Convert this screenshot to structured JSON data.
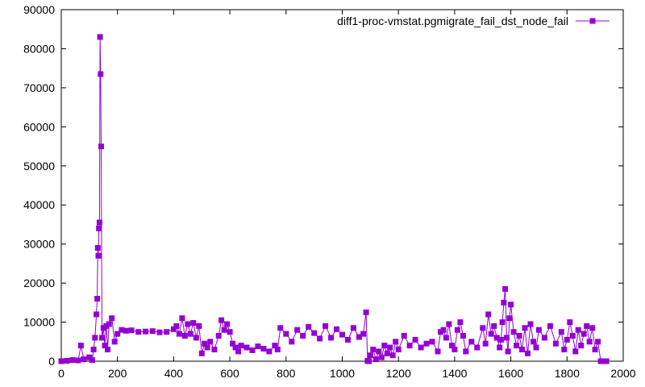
{
  "chart_data": {
    "type": "line",
    "title": "",
    "xlabel": "",
    "ylabel": "",
    "xlim": [
      0,
      2000
    ],
    "ylim": [
      0,
      90000
    ],
    "x_ticks": [
      0,
      200,
      400,
      600,
      800,
      1000,
      1200,
      1400,
      1600,
      1800,
      2000
    ],
    "y_ticks": [
      0,
      10000,
      20000,
      30000,
      40000,
      50000,
      60000,
      70000,
      80000,
      90000
    ],
    "grid": false,
    "legend_position": "top-right",
    "series": [
      {
        "name": "diff1-proc-vmstat.pgmigrate_fail_dst_node_fail",
        "color": "#9400d3",
        "marker": "square",
        "x": [
          0,
          20,
          40,
          60,
          70,
          80,
          100,
          110,
          115,
          120,
          125,
          128,
          130,
          132,
          134,
          136,
          138,
          140,
          142,
          145,
          150,
          155,
          160,
          165,
          170,
          180,
          190,
          200,
          215,
          230,
          250,
          275,
          300,
          325,
          350,
          375,
          400,
          410,
          420,
          430,
          440,
          450,
          460,
          470,
          480,
          490,
          500,
          510,
          520,
          530,
          545,
          560,
          570,
          580,
          590,
          600,
          610,
          620,
          630,
          640,
          660,
          680,
          700,
          720,
          740,
          760,
          770,
          780,
          800,
          820,
          840,
          860,
          880,
          900,
          920,
          940,
          960,
          980,
          1000,
          1020,
          1040,
          1060,
          1075,
          1085,
          1090,
          1095,
          1100,
          1110,
          1120,
          1130,
          1140,
          1150,
          1160,
          1170,
          1180,
          1190,
          1200,
          1220,
          1240,
          1260,
          1280,
          1300,
          1320,
          1340,
          1350,
          1360,
          1370,
          1380,
          1390,
          1400,
          1410,
          1420,
          1430,
          1440,
          1460,
          1480,
          1500,
          1510,
          1520,
          1530,
          1540,
          1550,
          1560,
          1565,
          1570,
          1575,
          1580,
          1585,
          1590,
          1595,
          1600,
          1610,
          1620,
          1630,
          1640,
          1650,
          1660,
          1670,
          1680,
          1690,
          1700,
          1720,
          1740,
          1760,
          1780,
          1790,
          1800,
          1810,
          1820,
          1830,
          1840,
          1850,
          1860,
          1870,
          1880,
          1890,
          1900,
          1910,
          1920,
          1940
        ],
        "y": [
          0,
          100,
          300,
          200,
          4000,
          500,
          1000,
          300,
          3000,
          6000,
          12000,
          16000,
          29000,
          27000,
          34000,
          35500,
          83000,
          73500,
          55000,
          6000,
          8500,
          4000,
          9000,
          3000,
          9500,
          11000,
          5000,
          7000,
          8000,
          7800,
          7900,
          7500,
          7600,
          7700,
          7400,
          7500,
          8200,
          9000,
          7000,
          11000,
          6500,
          9500,
          7000,
          9800,
          6000,
          9000,
          2000,
          4500,
          3500,
          5000,
          3000,
          6500,
          10500,
          8000,
          9500,
          7500,
          4500,
          3500,
          2500,
          4000,
          3500,
          2800,
          3800,
          3200,
          2500,
          4000,
          3000,
          8500,
          7000,
          5000,
          8000,
          6500,
          8800,
          7200,
          5800,
          9000,
          6000,
          8200,
          6800,
          5500,
          8500,
          6200,
          7000,
          12500,
          100,
          0,
          1500,
          3000,
          500,
          2500,
          1000,
          4000,
          2000,
          3500,
          1500,
          5000,
          3000,
          6500,
          4000,
          5500,
          3500,
          4500,
          5000,
          2500,
          7500,
          8000,
          6000,
          9500,
          4000,
          3000,
          8000,
          10000,
          6500,
          2500,
          5000,
          3500,
          8500,
          4500,
          12000,
          7000,
          9000,
          6000,
          3500,
          5500,
          10000,
          15000,
          18500,
          6000,
          2500,
          11000,
          14500,
          7500,
          4000,
          6500,
          3000,
          8500,
          2000,
          9500,
          5000,
          3500,
          8000,
          6000,
          9000,
          4500,
          7500,
          3000,
          5500,
          10000,
          6500,
          2500,
          8000,
          4000,
          7000,
          9000,
          5000,
          8500,
          3000,
          5000,
          0,
          0
        ]
      }
    ]
  }
}
